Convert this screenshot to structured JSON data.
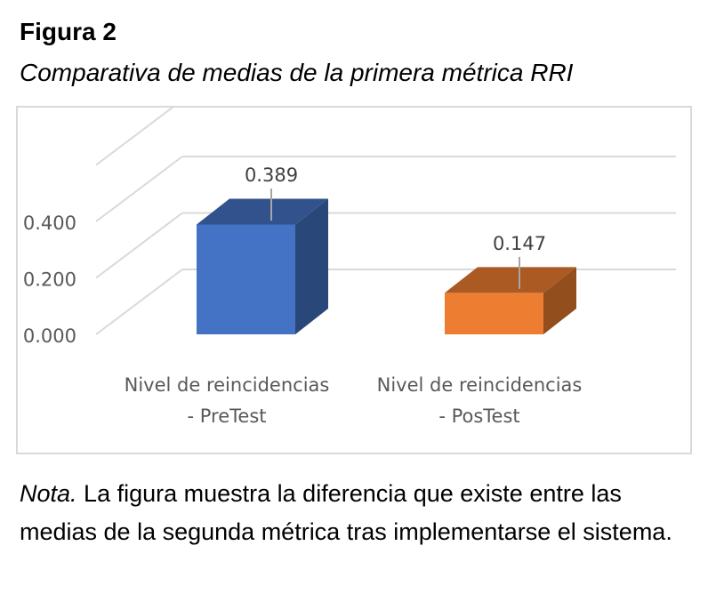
{
  "figure_label": "Figura 2",
  "figure_title": "Comparativa de medias de la primera métrica RRI",
  "note_prefix": "Nota.",
  "note_text": " La figura muestra la diferencia que existe entre las medias de la segunda métrica tras implementarse el sistema.",
  "chart_data": {
    "type": "bar",
    "style": "3d-column",
    "categories": [
      [
        "Nivel de reincidencias",
        "- PreTest"
      ],
      [
        "Nivel de reincidencias",
        "- PosTest"
      ]
    ],
    "values": [
      0.389,
      0.147
    ],
    "data_labels": [
      "0.389",
      "0.147"
    ],
    "bar_colors": [
      "#4472c4",
      "#ed7d31"
    ],
    "y_ticks": [
      "0.000",
      "0.200",
      "0.400"
    ],
    "y_tick_values": [
      0,
      0.2,
      0.4
    ],
    "ylim": [
      0,
      0.6
    ],
    "grid": true,
    "legend": false
  }
}
